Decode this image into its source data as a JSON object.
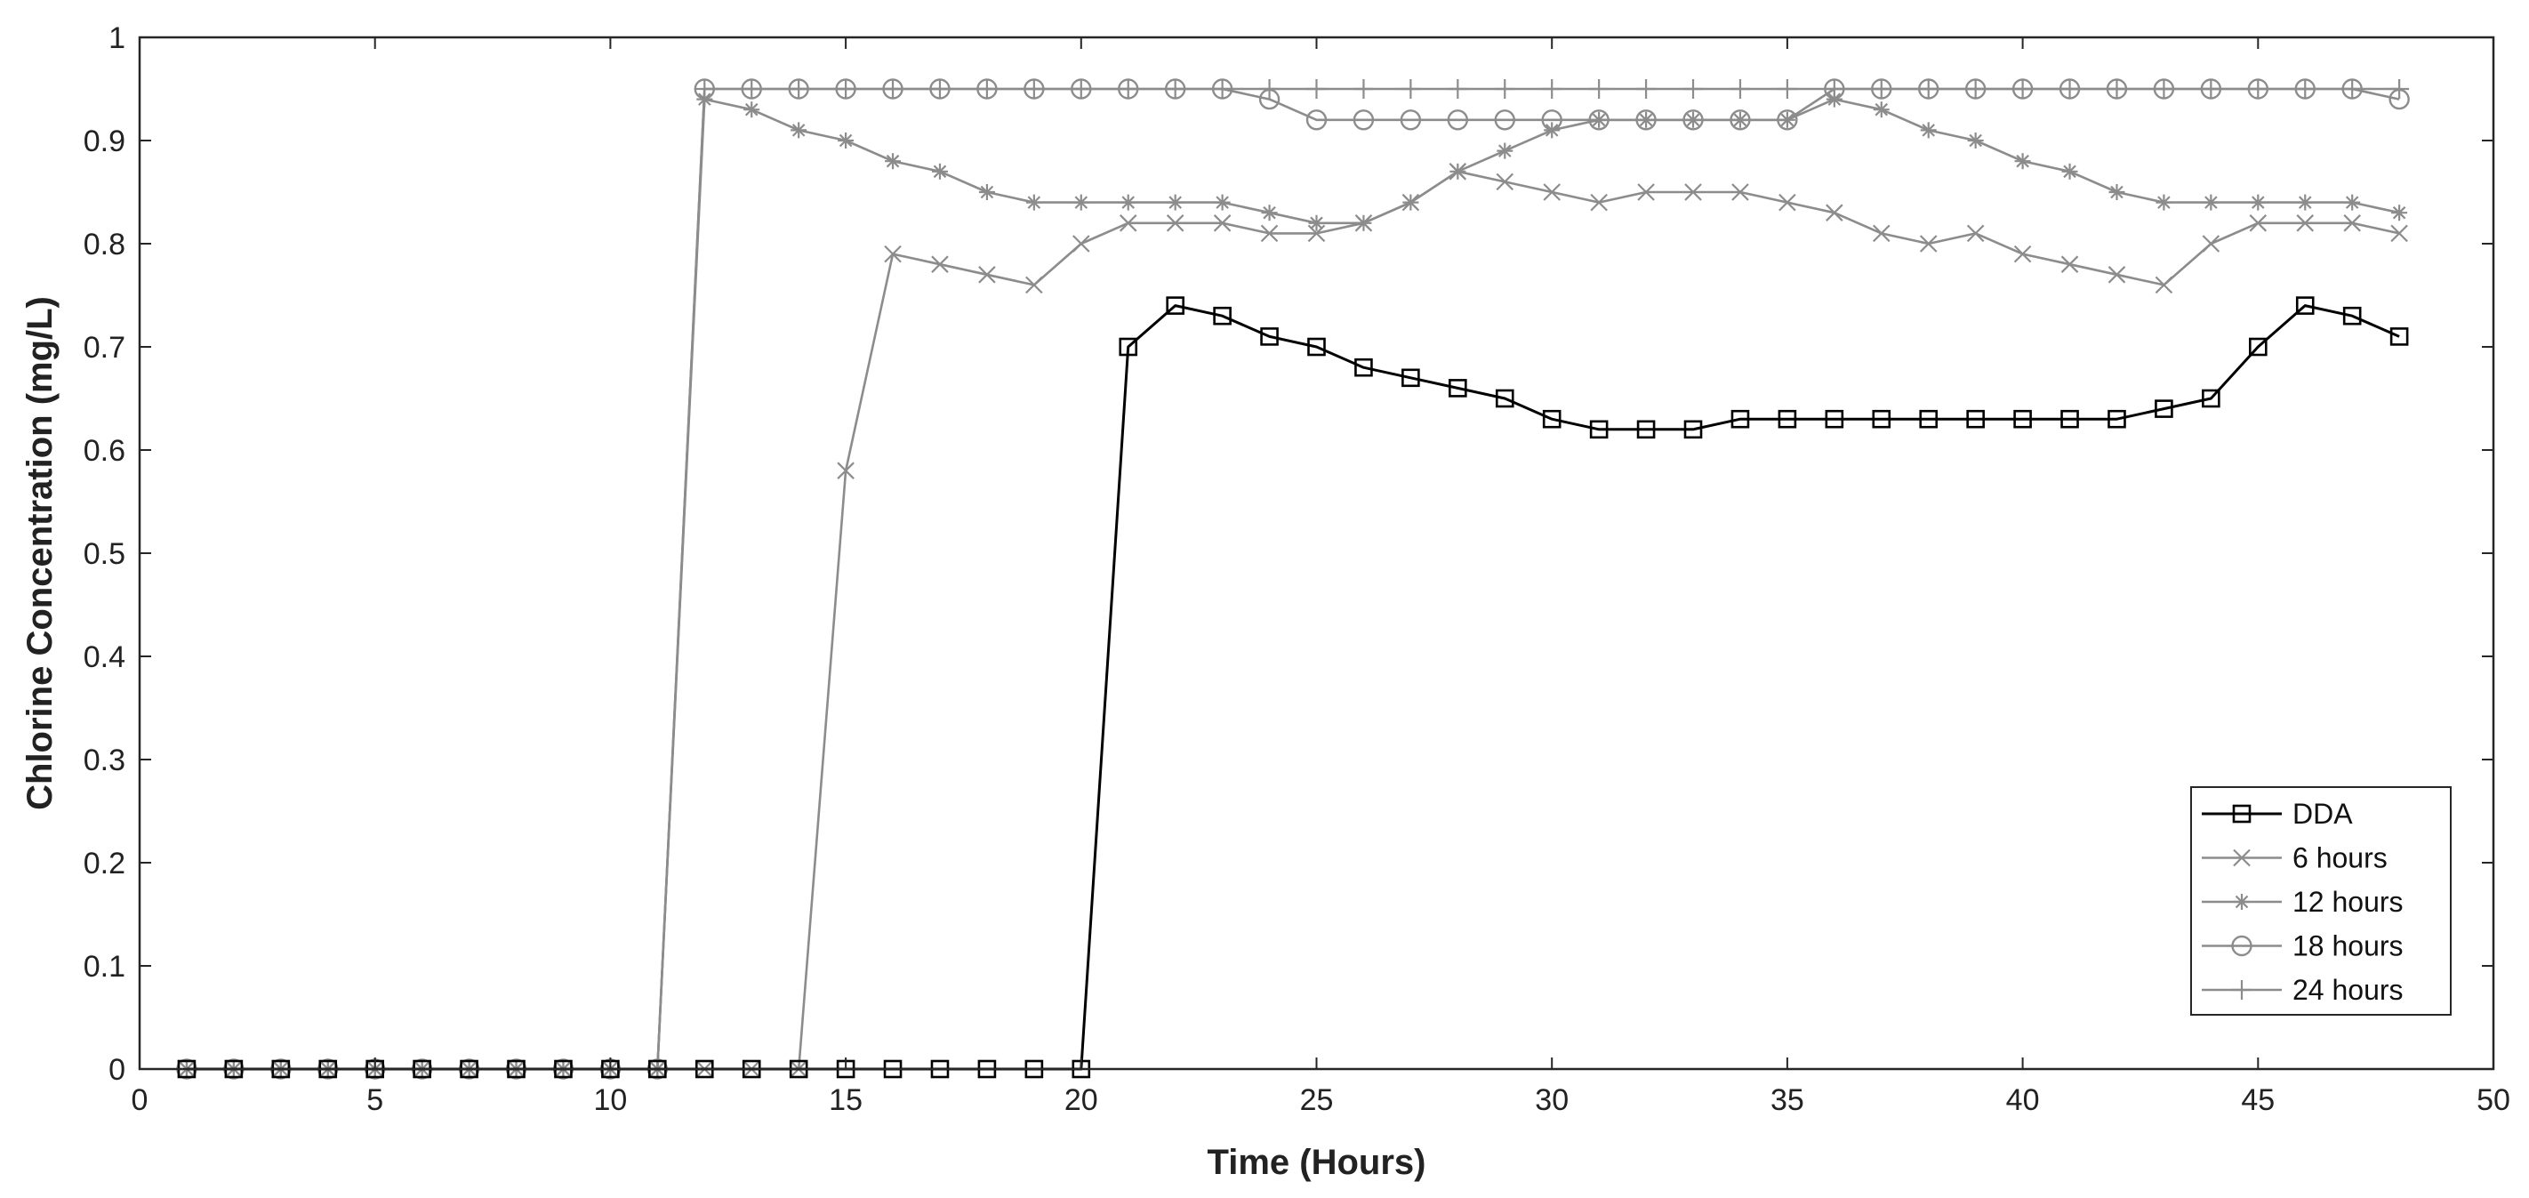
{
  "chart_data": {
    "type": "line",
    "title": "",
    "xlabel": "Time (Hours)",
    "ylabel": "Chlorine Concentration (mg/L)",
    "xlim": [
      0,
      50
    ],
    "ylim": [
      0,
      1
    ],
    "xticks": [
      0,
      5,
      10,
      15,
      20,
      25,
      30,
      35,
      40,
      45,
      50
    ],
    "yticks": [
      0,
      0.1,
      0.2,
      0.3,
      0.4,
      0.5,
      0.6,
      0.7,
      0.8,
      0.9,
      1
    ],
    "grid": false,
    "legend_position": "bottom-right",
    "x": [
      1,
      2,
      3,
      4,
      5,
      6,
      7,
      8,
      9,
      10,
      11,
      12,
      13,
      14,
      15,
      16,
      17,
      18,
      19,
      20,
      21,
      22,
      23,
      24,
      25,
      26,
      27,
      28,
      29,
      30,
      31,
      32,
      33,
      34,
      35,
      36,
      37,
      38,
      39,
      40,
      41,
      42,
      43,
      44,
      45,
      46,
      47,
      48
    ],
    "series": [
      {
        "name": "DDA",
        "color": "#000000",
        "marker": "square",
        "values": [
          0,
          0,
          0,
          0,
          0,
          0,
          0,
          0,
          0,
          0,
          0,
          0,
          0,
          0,
          0,
          0,
          0,
          0,
          0,
          0,
          0.7,
          0.74,
          0.73,
          0.71,
          0.7,
          0.68,
          0.67,
          0.66,
          0.65,
          0.63,
          0.62,
          0.62,
          0.62,
          0.63,
          0.63,
          0.63,
          0.63,
          0.63,
          0.63,
          0.63,
          0.63,
          0.63,
          0.64,
          0.65,
          0.7,
          0.74,
          0.73,
          0.71
        ]
      },
      {
        "name": "6 hours",
        "color": "#8c8c8c",
        "marker": "x",
        "values": [
          0,
          0,
          0,
          0,
          0,
          0,
          0,
          0,
          0,
          0,
          0,
          0,
          0,
          0,
          0.58,
          0.79,
          0.78,
          0.77,
          0.76,
          0.8,
          0.82,
          0.82,
          0.82,
          0.81,
          0.81,
          0.82,
          0.84,
          0.87,
          0.86,
          0.85,
          0.84,
          0.85,
          0.85,
          0.85,
          0.84,
          0.83,
          0.81,
          0.8,
          0.81,
          0.79,
          0.78,
          0.77,
          0.76,
          0.8,
          0.82,
          0.82,
          0.82,
          0.81
        ]
      },
      {
        "name": "12 hours",
        "color": "#8c8c8c",
        "marker": "asterisk",
        "values": [
          0,
          0,
          0,
          0,
          0,
          0,
          0,
          0,
          0,
          0,
          0,
          0.94,
          0.93,
          0.91,
          0.9,
          0.88,
          0.87,
          0.85,
          0.84,
          0.84,
          0.84,
          0.84,
          0.84,
          0.83,
          0.82,
          0.82,
          0.84,
          0.87,
          0.89,
          0.91,
          0.92,
          0.92,
          0.92,
          0.92,
          0.92,
          0.94,
          0.93,
          0.91,
          0.9,
          0.88,
          0.87,
          0.85,
          0.84,
          0.84,
          0.84,
          0.84,
          0.84,
          0.83
        ]
      },
      {
        "name": "18 hours",
        "color": "#8c8c8c",
        "marker": "circle",
        "values": [
          0,
          0,
          0,
          0,
          0,
          0,
          0,
          0,
          0,
          0,
          0,
          0.95,
          0.95,
          0.95,
          0.95,
          0.95,
          0.95,
          0.95,
          0.95,
          0.95,
          0.95,
          0.95,
          0.95,
          0.94,
          0.92,
          0.92,
          0.92,
          0.92,
          0.92,
          0.92,
          0.92,
          0.92,
          0.92,
          0.92,
          0.92,
          0.95,
          0.95,
          0.95,
          0.95,
          0.95,
          0.95,
          0.95,
          0.95,
          0.95,
          0.95,
          0.95,
          0.95,
          0.94
        ]
      },
      {
        "name": "24 hours",
        "color": "#8c8c8c",
        "marker": "plus",
        "values": [
          0,
          0,
          0,
          0,
          0,
          0,
          0,
          0,
          0,
          0,
          0,
          0.95,
          0.95,
          0.95,
          0.95,
          0.95,
          0.95,
          0.95,
          0.95,
          0.95,
          0.95,
          0.95,
          0.95,
          0.95,
          0.95,
          0.95,
          0.95,
          0.95,
          0.95,
          0.95,
          0.95,
          0.95,
          0.95,
          0.95,
          0.95,
          0.95,
          0.95,
          0.95,
          0.95,
          0.95,
          0.95,
          0.95,
          0.95,
          0.95,
          0.95,
          0.95,
          0.95,
          0.95
        ]
      }
    ]
  }
}
